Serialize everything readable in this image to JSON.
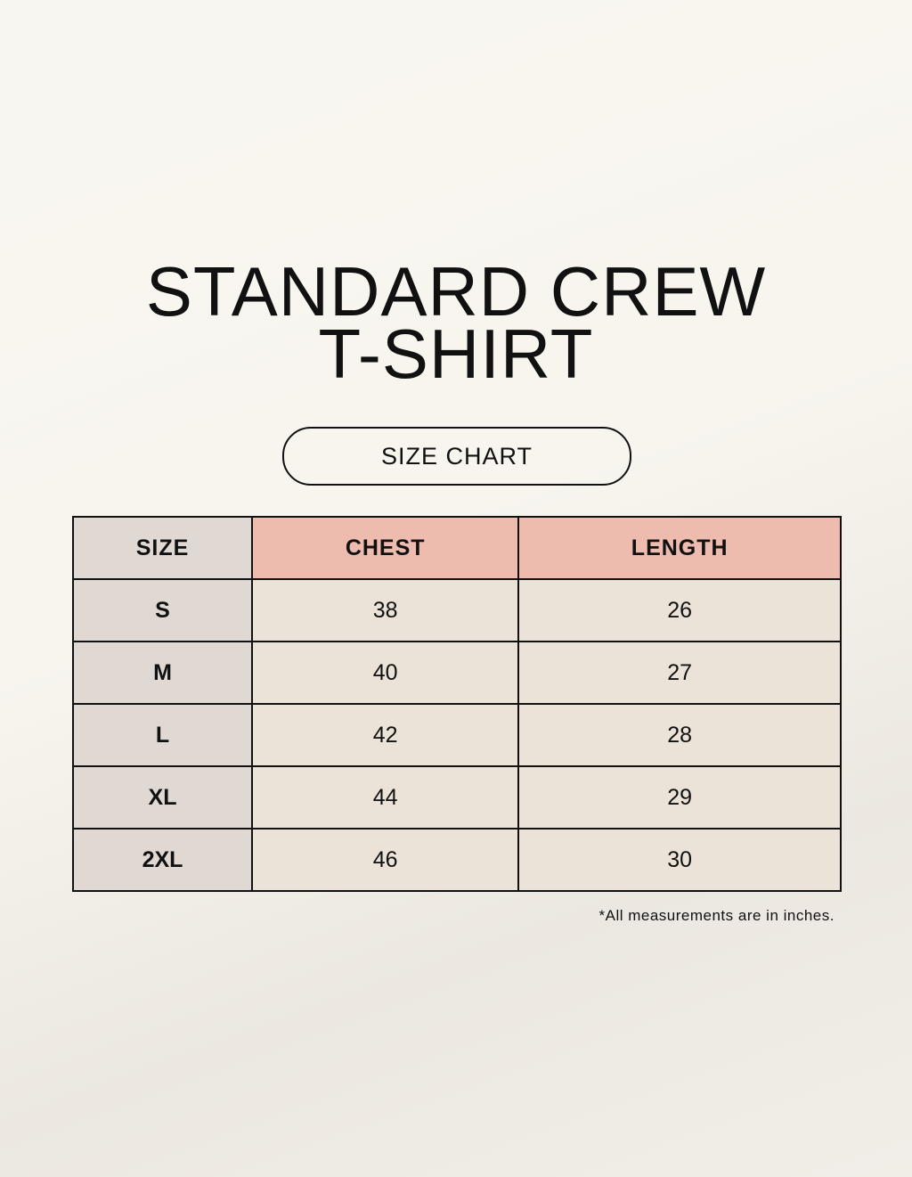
{
  "title_line1": "STANDARD CREW",
  "title_line2": "T-SHIRT",
  "badge": "SIZE CHART",
  "table": {
    "headers": [
      "SIZE",
      "CHEST",
      "LENGTH"
    ],
    "rows": [
      [
        "S",
        "38",
        "26"
      ],
      [
        "M",
        "40",
        "27"
      ],
      [
        "L",
        "42",
        "28"
      ],
      [
        "XL",
        "44",
        "29"
      ],
      [
        "2XL",
        "46",
        "30"
      ]
    ]
  },
  "note": "*All measurements are in inches.",
  "colors": {
    "size_column": "#e0d8d2",
    "header_accent": "#eebcae",
    "cell": "#ebe3d8"
  }
}
